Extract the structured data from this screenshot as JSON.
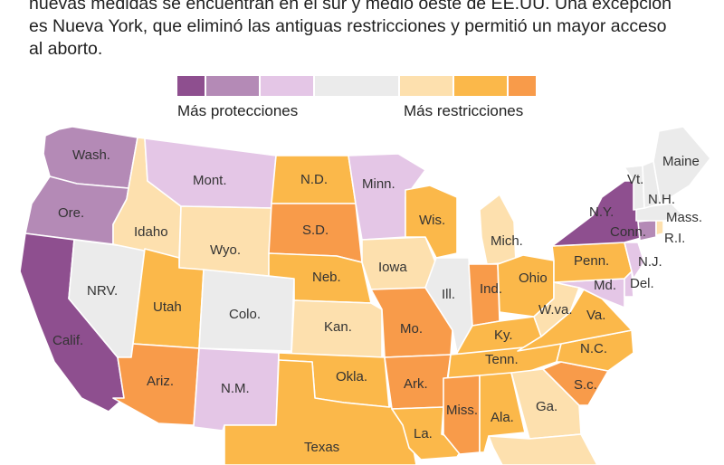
{
  "intro": {
    "line1": "nuevas medidas se encuentran en el sur y medio oeste de EE.UU. Una excepción",
    "line2": "es Nueva York, que eliminó las antiguas restricciones y permitió un mayor acceso",
    "line3": "al aborto."
  },
  "legend": {
    "left_label": "Más protecciones",
    "right_label": "Más restricciones",
    "scale": [
      {
        "color": "#8e4f8f"
      },
      {
        "color": "#b48ab6"
      },
      {
        "color": "#e4c6e6"
      },
      {
        "color": "#ebebeb"
      },
      {
        "color": "#fde0ae"
      },
      {
        "color": "#fbb84a"
      },
      {
        "color": "#f89b4a"
      }
    ]
  },
  "states": {
    "wa": {
      "label": "Wash.",
      "level": 1
    },
    "or": {
      "label": "Ore.",
      "level": 1
    },
    "ca": {
      "label": "Calif.",
      "level": 0
    },
    "id": {
      "label": "Idaho",
      "level": 4
    },
    "nv": {
      "label": "NRV.",
      "level": 3
    },
    "mt": {
      "label": "Mont.",
      "level": 2
    },
    "wy": {
      "label": "Wyo.",
      "level": 4
    },
    "ut": {
      "label": "Utah",
      "level": 5
    },
    "az": {
      "label": "Ariz.",
      "level": 6
    },
    "co": {
      "label": "Colo.",
      "level": 3
    },
    "nm": {
      "label": "N.M.",
      "level": 2
    },
    "nd": {
      "label": "N.D.",
      "level": 5
    },
    "sd": {
      "label": "S.D.",
      "level": 6
    },
    "ne": {
      "label": "Neb.",
      "level": 5
    },
    "ks": {
      "label": "Kan.",
      "level": 4
    },
    "ok": {
      "label": "Okla.",
      "level": 5
    },
    "tx": {
      "label": "Texas",
      "level": 5
    },
    "mn": {
      "label": "Minn.",
      "level": 2
    },
    "ia": {
      "label": "Iowa",
      "level": 4
    },
    "mo": {
      "label": "Mo.",
      "level": 6
    },
    "ar": {
      "label": "Ark.",
      "level": 6
    },
    "la": {
      "label": "La.",
      "level": 5
    },
    "wi": {
      "label": "Wis.",
      "level": 5
    },
    "il": {
      "label": "Ill.",
      "level": 3
    },
    "mi": {
      "label": "Mich.",
      "level": 4
    },
    "in": {
      "label": "Ind.",
      "level": 6
    },
    "oh": {
      "label": "Ohio",
      "level": 5
    },
    "ky": {
      "label": "Ky.",
      "level": 5
    },
    "tn": {
      "label": "Tenn.",
      "level": 5
    },
    "ms": {
      "label": "Miss.",
      "level": 6
    },
    "al": {
      "label": "Ala.",
      "level": 5
    },
    "ga": {
      "label": "Ga.",
      "level": 4
    },
    "fl": {
      "label": "",
      "level": 4
    },
    "sc": {
      "label": "S.c.",
      "level": 6
    },
    "nc": {
      "label": "N.C.",
      "level": 5
    },
    "va": {
      "label": "Va.",
      "level": 5
    },
    "wv": {
      "label": "W.va.",
      "level": 4
    },
    "pa": {
      "label": "Penn.",
      "level": 5
    },
    "ny": {
      "label": "N.Y.",
      "level": 0
    },
    "vt": {
      "label": "Vt.",
      "level": 3
    },
    "nh": {
      "label": "N.H.",
      "level": 3
    },
    "me": {
      "label": "Maine",
      "level": 3
    },
    "ma": {
      "label": "Mass.",
      "level": 3
    },
    "ri": {
      "label": "R.I.",
      "level": 4
    },
    "ct": {
      "label": "Conn.",
      "level": 1
    },
    "nj": {
      "label": "N.J.",
      "level": 2
    },
    "de": {
      "label": "Del.",
      "level": 2
    },
    "md": {
      "label": "Md.",
      "level": 2
    }
  }
}
